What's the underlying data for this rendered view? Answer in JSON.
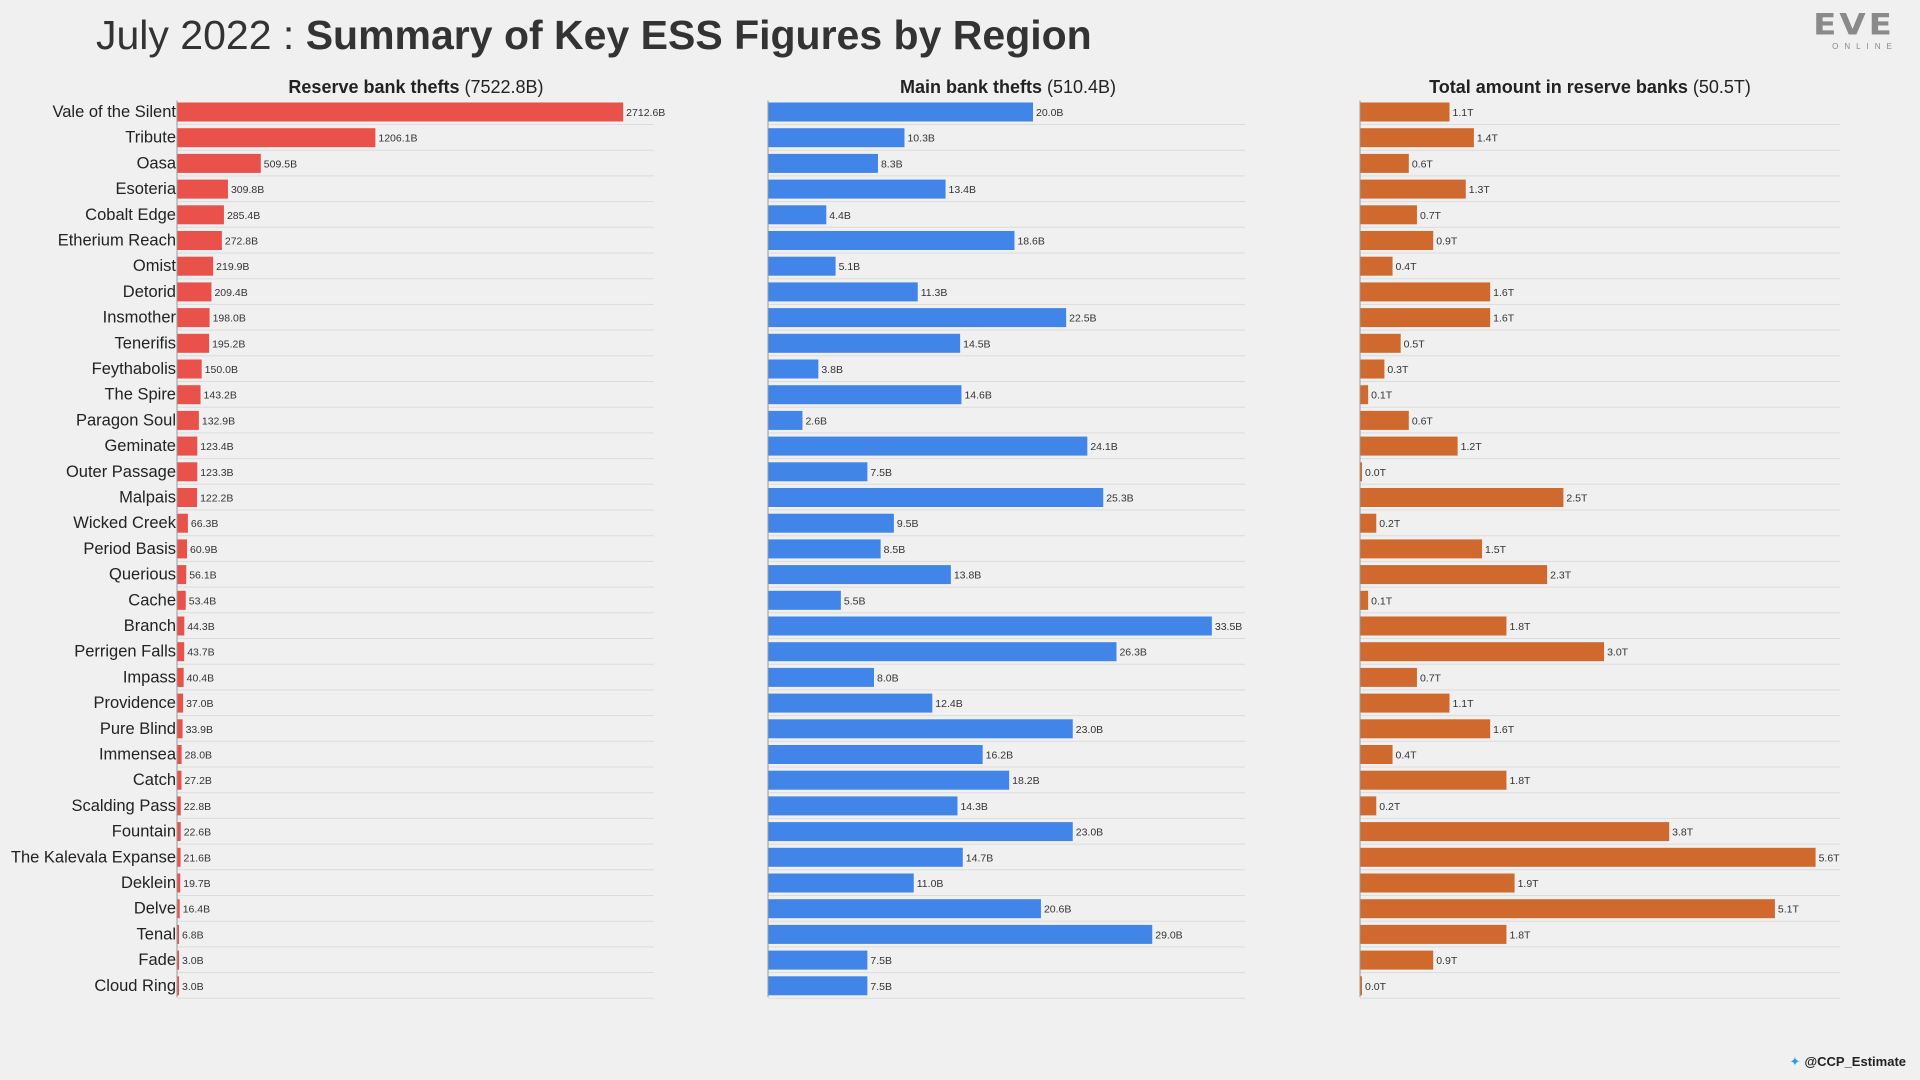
{
  "header": {
    "title_light": "July 2022 : ",
    "title_bold": "Summary of Key ESS Figures by Region"
  },
  "logo": {
    "mark": "EVE",
    "sub": "ONLINE"
  },
  "credit": {
    "icon": "twitter-icon",
    "handle": "@CCP_Estimate"
  },
  "colors": {
    "reserve": "#e8524a",
    "main": "#4285e8",
    "total": "#d0692e",
    "grid": "#dcdcdc",
    "background": "#f0f0f0"
  },
  "chart_data": [
    {
      "type": "bar",
      "orientation": "horizontal",
      "title": "Reserve bank thefts",
      "title_suffix": "(7522.8B)",
      "unit": "B",
      "xlim": [
        0,
        2900
      ],
      "categories": [
        "Vale of the Silent",
        "Tribute",
        "Oasa",
        "Esoteria",
        "Cobalt Edge",
        "Etherium Reach",
        "Omist",
        "Detorid",
        "Insmother",
        "Tenerifis",
        "Feythabolis",
        "The Spire",
        "Paragon Soul",
        "Geminate",
        "Outer Passage",
        "Malpais",
        "Wicked Creek",
        "Period Basis",
        "Querious",
        "Cache",
        "Branch",
        "Perrigen Falls",
        "Impass",
        "Providence",
        "Pure Blind",
        "Immensea",
        "Catch",
        "Scalding Pass",
        "Fountain",
        "The Kalevala Expanse",
        "Deklein",
        "Delve",
        "Tenal",
        "Fade",
        "Cloud Ring"
      ],
      "values": [
        2712.6,
        1206.1,
        509.5,
        309.8,
        285.4,
        272.8,
        219.9,
        209.4,
        198.0,
        195.2,
        150.0,
        143.2,
        132.9,
        123.4,
        123.3,
        122.2,
        66.3,
        60.9,
        56.1,
        53.4,
        44.3,
        43.7,
        40.4,
        37.0,
        33.9,
        28.0,
        27.2,
        22.8,
        22.6,
        21.6,
        19.7,
        16.4,
        6.8,
        3.0,
        3.0
      ],
      "labels": [
        "2712.6B",
        "1206.1B",
        "509.5B",
        "309.8B",
        "285.4B",
        "272.8B",
        "219.9B",
        "209.4B",
        "198.0B",
        "195.2B",
        "150.0B",
        "143.2B",
        "132.9B",
        "123.4B",
        "123.3B",
        "122.2B",
        "66.3B",
        "60.9B",
        "56.1B",
        "53.4B",
        "44.3B",
        "43.7B",
        "40.4B",
        "37.0B",
        "33.9B",
        "28.0B",
        "27.2B",
        "22.8B",
        "22.6B",
        "21.6B",
        "19.7B",
        "16.4B",
        "6.8B",
        "3.0B",
        "3.0B"
      ]
    },
    {
      "type": "bar",
      "orientation": "horizontal",
      "title": "Main bank thefts",
      "title_suffix": "(510.4B)",
      "unit": "B",
      "xlim": [
        0,
        36
      ],
      "categories": [
        "Vale of the Silent",
        "Tribute",
        "Oasa",
        "Esoteria",
        "Cobalt Edge",
        "Etherium Reach",
        "Omist",
        "Detorid",
        "Insmother",
        "Tenerifis",
        "Feythabolis",
        "The Spire",
        "Paragon Soul",
        "Geminate",
        "Outer Passage",
        "Malpais",
        "Wicked Creek",
        "Period Basis",
        "Querious",
        "Cache",
        "Branch",
        "Perrigen Falls",
        "Impass",
        "Providence",
        "Pure Blind",
        "Immensea",
        "Catch",
        "Scalding Pass",
        "Fountain",
        "The Kalevala Expanse",
        "Deklein",
        "Delve",
        "Tenal",
        "Fade",
        "Cloud Ring"
      ],
      "values": [
        20.0,
        10.3,
        8.3,
        13.4,
        4.4,
        18.6,
        5.1,
        11.3,
        22.5,
        14.5,
        3.8,
        14.6,
        2.6,
        24.1,
        7.5,
        25.3,
        9.5,
        8.5,
        13.8,
        5.5,
        33.5,
        26.3,
        8.0,
        12.4,
        23.0,
        16.2,
        18.2,
        14.3,
        23.0,
        14.7,
        11.0,
        20.6,
        29.0,
        7.5,
        7.5
      ],
      "labels": [
        "20.0B",
        "10.3B",
        "8.3B",
        "13.4B",
        "4.4B",
        "18.6B",
        "5.1B",
        "11.3B",
        "22.5B",
        "14.5B",
        "3.8B",
        "14.6B",
        "2.6B",
        "24.1B",
        "7.5B",
        "25.3B",
        "9.5B",
        "8.5B",
        "13.8B",
        "5.5B",
        "33.5B",
        "26.3B",
        "8.0B",
        "12.4B",
        "23.0B",
        "16.2B",
        "18.2B",
        "14.3B",
        "23.0B",
        "14.7B",
        "11.0B",
        "20.6B",
        "29.0B",
        "7.5B",
        "7.5B"
      ]
    },
    {
      "type": "bar",
      "orientation": "horizontal",
      "title": "Total amount in reserve banks",
      "title_suffix": "(50.5T)",
      "unit": "T",
      "xlim": [
        0,
        5.9
      ],
      "categories": [
        "Vale of the Silent",
        "Tribute",
        "Oasa",
        "Esoteria",
        "Cobalt Edge",
        "Etherium Reach",
        "Omist",
        "Detorid",
        "Insmother",
        "Tenerifis",
        "Feythabolis",
        "The Spire",
        "Paragon Soul",
        "Geminate",
        "Outer Passage",
        "Malpais",
        "Wicked Creek",
        "Period Basis",
        "Querious",
        "Cache",
        "Branch",
        "Perrigen Falls",
        "Impass",
        "Providence",
        "Pure Blind",
        "Immensea",
        "Catch",
        "Scalding Pass",
        "Fountain",
        "The Kalevala Expanse",
        "Deklein",
        "Delve",
        "Tenal",
        "Fade",
        "Cloud Ring"
      ],
      "values": [
        1.1,
        1.4,
        0.6,
        1.3,
        0.7,
        0.9,
        0.4,
        1.6,
        1.6,
        0.5,
        0.3,
        0.1,
        0.6,
        1.2,
        0.0,
        2.5,
        0.2,
        1.5,
        2.3,
        0.1,
        1.8,
        3.0,
        0.7,
        1.1,
        1.6,
        0.4,
        1.8,
        0.2,
        3.8,
        5.6,
        1.9,
        5.1,
        1.8,
        0.9,
        0.0
      ],
      "labels": [
        "1.1T",
        "1.4T",
        "0.6T",
        "1.3T",
        "0.7T",
        "0.9T",
        "0.4T",
        "1.6T",
        "1.6T",
        "0.5T",
        "0.3T",
        "0.1T",
        "0.6T",
        "1.2T",
        "0.0T",
        "2.5T",
        "0.2T",
        "1.5T",
        "2.3T",
        "0.1T",
        "1.8T",
        "3.0T",
        "0.7T",
        "1.1T",
        "1.6T",
        "0.4T",
        "1.8T",
        "0.2T",
        "3.8T",
        "5.6T",
        "1.9T",
        "5.1T",
        "1.8T",
        "0.9T",
        "0.0T"
      ]
    }
  ]
}
